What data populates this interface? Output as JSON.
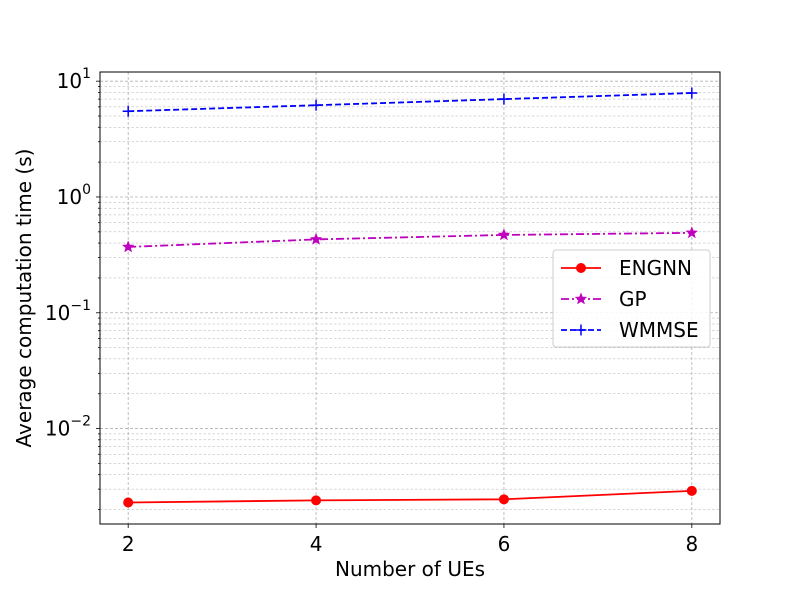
{
  "chart_data": {
    "type": "line",
    "title": "",
    "xlabel": "Number of UEs",
    "ylabel": "Average computation time (s)",
    "x": [
      2,
      4,
      6,
      8
    ],
    "xlim": [
      1.7,
      8.3
    ],
    "ylim": [
      0.0015,
      12
    ],
    "yscale": "log",
    "x_ticks": [
      {
        "value": 2,
        "label": "2"
      },
      {
        "value": 4,
        "label": "4"
      },
      {
        "value": 6,
        "label": "6"
      },
      {
        "value": 8,
        "label": "8"
      }
    ],
    "y_ticks": [
      {
        "value": 0.01,
        "base": "10",
        "exp": "−2"
      },
      {
        "value": 0.1,
        "base": "10",
        "exp": "−1"
      },
      {
        "value": 1,
        "base": "10",
        "exp": "0"
      },
      {
        "value": 10,
        "base": "10",
        "exp": "1"
      }
    ],
    "grid": true,
    "legend_position": "center-right",
    "series": [
      {
        "name": "ENGNN",
        "values": [
          0.0023,
          0.0024,
          0.00245,
          0.0029
        ],
        "color": "#ff0000",
        "linestyle": "solid",
        "marker": "circle"
      },
      {
        "name": "GP",
        "values": [
          0.37,
          0.43,
          0.47,
          0.49
        ],
        "color": "#bf00bf",
        "linestyle": "dashdot",
        "marker": "star"
      },
      {
        "name": "WMMSE",
        "values": [
          5.5,
          6.2,
          7.0,
          7.9
        ],
        "color": "#0000ff",
        "linestyle": "dashed",
        "marker": "plus"
      }
    ]
  }
}
